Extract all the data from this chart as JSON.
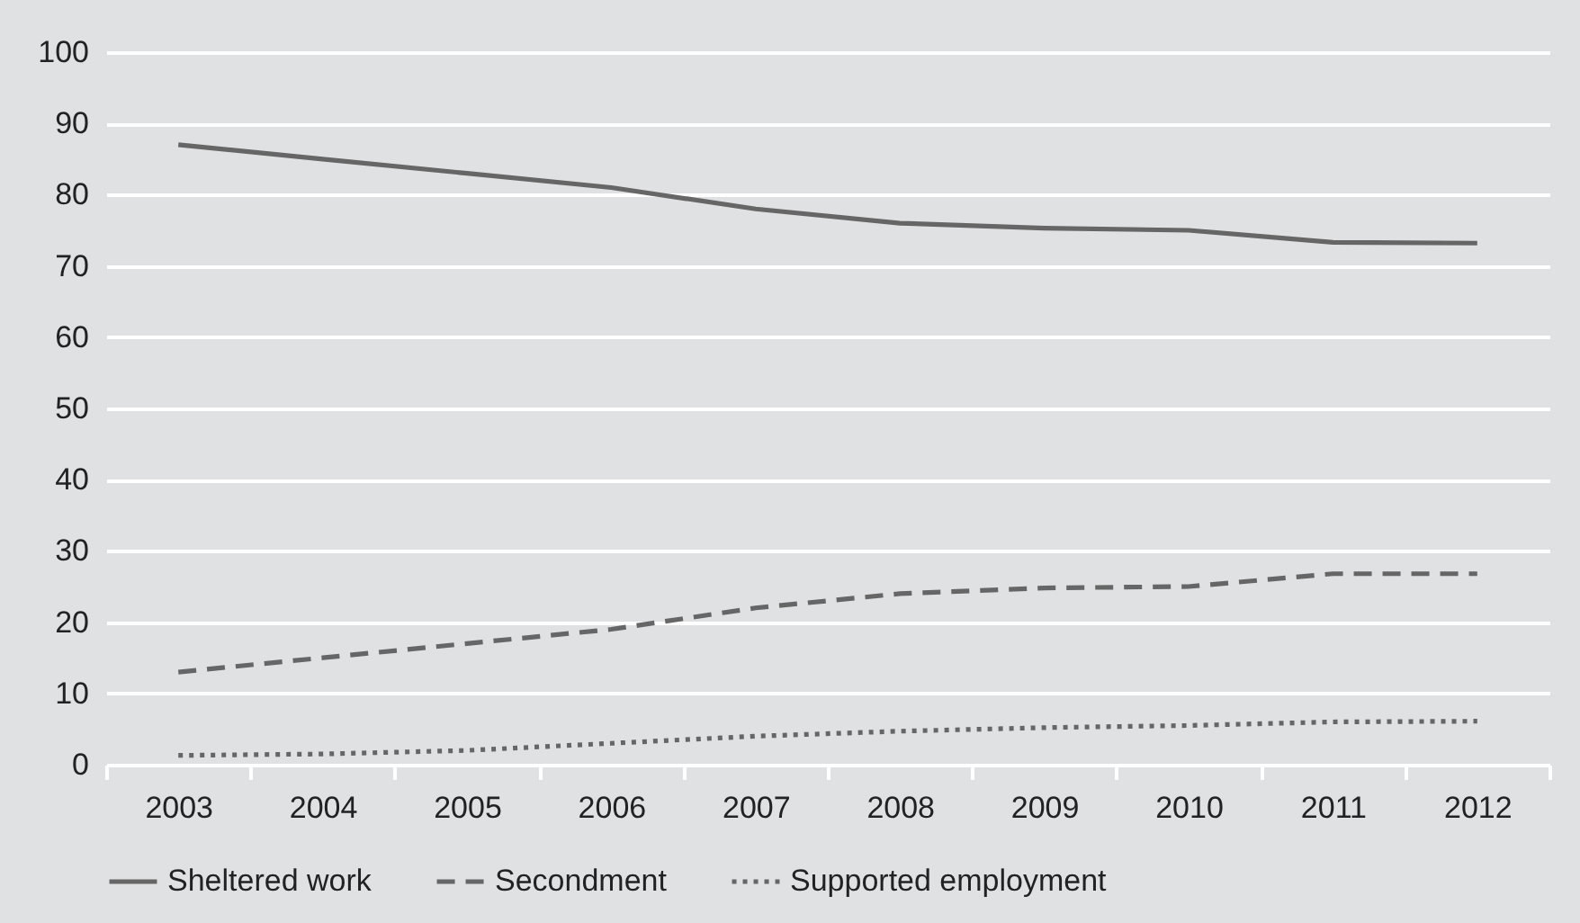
{
  "chart_data": {
    "type": "line",
    "categories": [
      "2003",
      "2004",
      "2005",
      "2006",
      "2007",
      "2008",
      "2009",
      "2010",
      "2011",
      "2012"
    ],
    "series": [
      {
        "name": "Sheltered work",
        "color": "#666666",
        "line_style": "solid",
        "values": [
          87,
          85,
          83,
          81,
          78,
          76,
          75.3,
          75,
          73.3,
          73.2
        ]
      },
      {
        "name": "Secondment",
        "color": "#666666",
        "line_style": "dashed",
        "values": [
          13,
          15,
          17,
          19,
          22,
          24,
          24.8,
          25,
          26.8,
          26.8
        ]
      },
      {
        "name": "Supported employment",
        "color": "#666666",
        "line_style": "dotted",
        "values": [
          1.3,
          1.5,
          2,
          3,
          4,
          4.7,
          5.2,
          5.5,
          6,
          6.1
        ]
      }
    ],
    "ylim": [
      0,
      100
    ],
    "yticks": [
      0,
      10,
      20,
      30,
      40,
      50,
      60,
      70,
      80,
      90,
      100
    ],
    "grid": "y",
    "legend": "bottom"
  }
}
